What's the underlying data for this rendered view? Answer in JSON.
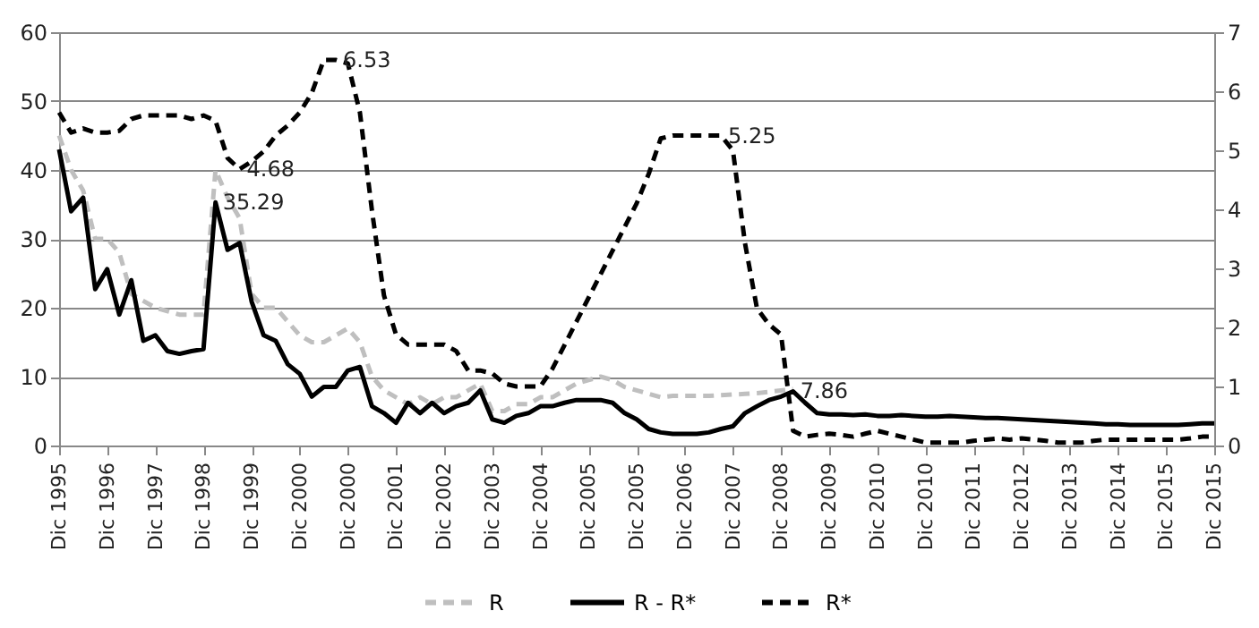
{
  "chart_data": {
    "type": "line",
    "categories": [
      "Dic 1995",
      null,
      null,
      null,
      "Dic 1996",
      null,
      null,
      null,
      "Dic 1997",
      null,
      null,
      null,
      "Dic 1998",
      null,
      null,
      null,
      "Dic 1999",
      null,
      null,
      null,
      "Dic 2000",
      null,
      null,
      null,
      "Dic 2000",
      null,
      null,
      null,
      "Dic 2001",
      null,
      null,
      null,
      "Dic 2002",
      null,
      null,
      null,
      "Dic 2003",
      null,
      null,
      null,
      "Dic 2004",
      null,
      null,
      null,
      "Dic 2005",
      null,
      null,
      null,
      "Dic 2005",
      null,
      null,
      null,
      "Dic 2006",
      null,
      null,
      null,
      "Dic 2007",
      null,
      null,
      null,
      "Dic 2008",
      null,
      null,
      null,
      "Dic 2009",
      null,
      null,
      null,
      "Dic 2010",
      null,
      null,
      null,
      "Dic 2010",
      null,
      null,
      null,
      "Dic 2011",
      null,
      null,
      null,
      "Dic 2012",
      null,
      null,
      null,
      "Dic 2013",
      null,
      null,
      null,
      "Dic 2014",
      null,
      null,
      null,
      "Dic 2015",
      null,
      null,
      null,
      "Dic 2015"
    ],
    "series": [
      {
        "name": "R",
        "color": "#bfbfbf",
        "line_style": "dashed",
        "values": [
          45,
          40,
          37,
          30,
          30,
          28,
          22,
          21,
          20,
          19.5,
          19,
          19,
          19,
          40,
          36,
          33,
          22,
          20,
          20,
          18,
          16,
          15,
          15,
          16,
          17,
          15,
          10,
          8,
          7,
          6,
          7,
          6,
          7,
          7,
          8,
          9,
          5,
          5,
          6,
          6,
          7,
          7,
          8,
          9,
          9.5,
          10,
          9.5,
          8.5,
          8,
          7.5,
          7,
          7.2,
          7.2,
          7.2,
          7.2,
          7.3,
          7.4,
          7.5,
          7.6,
          7.8,
          8,
          8.2,
          null,
          null,
          null,
          null,
          null,
          null,
          null,
          null,
          null,
          null,
          null,
          null,
          null,
          null,
          null,
          null,
          null,
          null,
          null,
          null,
          null,
          null,
          null,
          null,
          null,
          null,
          null,
          null,
          null,
          null,
          null,
          null,
          null,
          null,
          null
        ]
      },
      {
        "name": "R - R*",
        "color": "#000000",
        "line_style": "solid",
        "value_labels": [
          null,
          null,
          null,
          null,
          null,
          null,
          null,
          null,
          null,
          null,
          null,
          null,
          null,
          "35.29",
          null,
          null,
          null,
          null,
          null,
          null,
          null,
          null,
          null,
          null,
          null,
          null,
          null,
          null,
          null,
          null,
          null,
          null,
          null,
          null,
          null,
          null,
          null,
          null,
          null,
          null,
          null,
          null,
          null,
          null,
          null,
          null,
          null,
          null,
          null,
          null,
          null,
          null,
          null,
          null,
          null,
          null,
          null,
          null,
          null,
          null,
          null,
          "7.86",
          null,
          null,
          null,
          null,
          null,
          null,
          null,
          null,
          null,
          null,
          null,
          null,
          null,
          null,
          null,
          null,
          null,
          null,
          null,
          null,
          null,
          null,
          null,
          null,
          null,
          null,
          null,
          null,
          null,
          null,
          null,
          null,
          null,
          null,
          null
        ],
        "values": [
          43,
          34,
          36,
          22.7,
          25.6,
          19,
          24,
          15.2,
          16,
          13.7,
          13.3,
          13.7,
          14,
          35.29,
          28.4,
          29.4,
          20.9,
          16,
          15.2,
          11.8,
          10.4,
          7.1,
          8.5,
          8.5,
          10.9,
          11.4,
          5.7,
          4.7,
          3.3,
          6.2,
          4.7,
          6.2,
          4.7,
          5.7,
          6.2,
          8,
          3.8,
          3.3,
          4.3,
          4.7,
          5.7,
          5.7,
          6.2,
          6.6,
          6.6,
          6.6,
          6.2,
          4.7,
          3.8,
          2.4,
          1.9,
          1.7,
          1.7,
          1.7,
          1.9,
          2.4,
          2.8,
          4.7,
          5.7,
          6.6,
          7.1,
          7.86,
          6.2,
          4.7,
          4.5,
          4.5,
          4.4,
          4.5,
          4.3,
          4.3,
          4.4,
          4.3,
          4.2,
          4.2,
          4.3,
          4.2,
          4.1,
          4,
          4,
          3.9,
          3.8,
          3.7,
          3.6,
          3.5,
          3.4,
          3.3,
          3.2,
          3.1,
          3.1,
          3,
          3,
          3,
          3,
          3,
          3.1,
          3.2,
          3.2
        ]
      },
      {
        "name": "R*",
        "color": "#000000",
        "line_style": "dashed",
        "axis": "y2",
        "value_labels": [
          null,
          null,
          null,
          null,
          null,
          null,
          null,
          null,
          null,
          null,
          null,
          null,
          null,
          null,
          null,
          "4.68",
          null,
          null,
          null,
          null,
          null,
          null,
          null,
          "6.53",
          null,
          null,
          null,
          null,
          null,
          null,
          null,
          null,
          null,
          null,
          null,
          null,
          null,
          null,
          null,
          null,
          null,
          null,
          null,
          null,
          null,
          null,
          null,
          null,
          null,
          null,
          null,
          null,
          null,
          null,
          null,
          "5.25",
          null,
          null,
          null,
          null,
          null,
          null,
          null,
          null,
          null,
          null,
          null,
          null,
          null,
          null,
          null,
          null,
          null,
          null,
          null,
          null,
          null,
          null,
          null,
          null,
          null,
          null,
          null,
          null,
          null,
          null,
          null,
          null,
          null,
          null,
          null,
          null,
          null,
          null,
          null,
          null,
          null
        ],
        "values": [
          5.64,
          5.3,
          5.37,
          5.3,
          5.3,
          5.33,
          5.53,
          5.59,
          5.59,
          5.59,
          5.59,
          5.53,
          5.59,
          5.5,
          4.87,
          4.68,
          4.81,
          4.98,
          5.25,
          5.42,
          5.64,
          5.97,
          6.53,
          6.53,
          6.47,
          5.64,
          3.98,
          2.54,
          1.88,
          1.71,
          1.71,
          1.71,
          1.71,
          1.6,
          1.27,
          1.27,
          1.22,
          1.05,
          1,
          1,
          1,
          1.3,
          1.7,
          2.1,
          2.5,
          2.9,
          3.3,
          3.7,
          4.1,
          4.6,
          5.2,
          5.25,
          5.25,
          5.25,
          5.25,
          5.25,
          5,
          3.43,
          2.32,
          2.05,
          1.88,
          0.25,
          0.15,
          0.18,
          0.2,
          0.18,
          0.15,
          0.2,
          0.25,
          0.2,
          0.15,
          0.1,
          0.05,
          0.05,
          0.05,
          0.05,
          0.08,
          0.1,
          0.12,
          0.1,
          0.12,
          0.1,
          0.08,
          0.05,
          0.05,
          0.05,
          0.08,
          0.1,
          0.1,
          0.1,
          0.1,
          0.1,
          0.1,
          0.1,
          0.12,
          0.15,
          0.15
        ]
      }
    ],
    "ylim": [
      0,
      60
    ],
    "yticks": [
      0,
      10,
      20,
      30,
      40,
      50,
      60
    ],
    "y2lim": [
      0,
      7
    ],
    "y2ticks": [
      0,
      1,
      2,
      3,
      4,
      5,
      6,
      7
    ],
    "grid": "y",
    "legend": "bottom"
  }
}
